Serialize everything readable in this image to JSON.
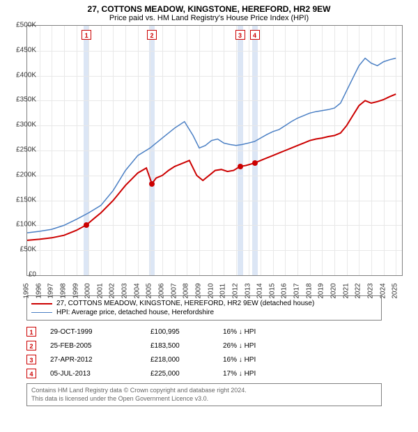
{
  "title": "27, COTTONS MEADOW, KINGSTONE, HEREFORD, HR2 9EW",
  "subtitle": "Price paid vs. HM Land Registry's House Price Index (HPI)",
  "chart": {
    "type": "line",
    "x_range": [
      1995,
      2025.5
    ],
    "y_range": [
      0,
      500000
    ],
    "y_tick_step": 50000,
    "y_ticks": [
      "£0",
      "£50K",
      "£100K",
      "£150K",
      "£200K",
      "£250K",
      "£300K",
      "£350K",
      "£400K",
      "£450K",
      "£500K"
    ],
    "x_ticks": [
      1995,
      1996,
      1997,
      1998,
      1999,
      2000,
      2001,
      2002,
      2003,
      2004,
      2005,
      2006,
      2007,
      2008,
      2009,
      2010,
      2011,
      2012,
      2013,
      2014,
      2015,
      2016,
      2017,
      2018,
      2019,
      2020,
      2021,
      2022,
      2023,
      2024,
      2025
    ],
    "grid_color": "#e8e8e8",
    "border_color": "#808080",
    "band_color": "#dce6f5",
    "background_color": "#ffffff",
    "series": [
      {
        "name": "property",
        "color": "#cc0000",
        "width": 2,
        "points": [
          [
            1995.0,
            70000
          ],
          [
            1996.0,
            72000
          ],
          [
            1997.0,
            75000
          ],
          [
            1998.0,
            80000
          ],
          [
            1999.0,
            90000
          ],
          [
            1999.83,
            100995
          ],
          [
            2000.5,
            115000
          ],
          [
            2001.0,
            125000
          ],
          [
            2002.0,
            150000
          ],
          [
            2003.0,
            180000
          ],
          [
            2004.0,
            205000
          ],
          [
            2004.7,
            215000
          ],
          [
            2005.15,
            183500
          ],
          [
            2005.5,
            195000
          ],
          [
            2006.0,
            200000
          ],
          [
            2006.5,
            210000
          ],
          [
            2007.0,
            218000
          ],
          [
            2007.7,
            225000
          ],
          [
            2008.2,
            230000
          ],
          [
            2008.8,
            200000
          ],
          [
            2009.3,
            190000
          ],
          [
            2009.8,
            200000
          ],
          [
            2010.3,
            210000
          ],
          [
            2010.8,
            212000
          ],
          [
            2011.3,
            208000
          ],
          [
            2011.8,
            210000
          ],
          [
            2012.32,
            218000
          ],
          [
            2012.8,
            220000
          ],
          [
            2013.51,
            225000
          ],
          [
            2014.0,
            230000
          ],
          [
            2014.5,
            235000
          ],
          [
            2015.0,
            240000
          ],
          [
            2015.5,
            245000
          ],
          [
            2016.0,
            250000
          ],
          [
            2016.5,
            255000
          ],
          [
            2017.0,
            260000
          ],
          [
            2017.5,
            265000
          ],
          [
            2018.0,
            270000
          ],
          [
            2018.5,
            273000
          ],
          [
            2019.0,
            275000
          ],
          [
            2019.5,
            278000
          ],
          [
            2020.0,
            280000
          ],
          [
            2020.5,
            285000
          ],
          [
            2021.0,
            300000
          ],
          [
            2021.5,
            320000
          ],
          [
            2022.0,
            340000
          ],
          [
            2022.5,
            350000
          ],
          [
            2023.0,
            345000
          ],
          [
            2023.5,
            348000
          ],
          [
            2024.0,
            352000
          ],
          [
            2024.5,
            358000
          ],
          [
            2025.0,
            363000
          ]
        ]
      },
      {
        "name": "hpi",
        "color": "#4a7fc4",
        "width": 1.5,
        "points": [
          [
            1995.0,
            85000
          ],
          [
            1996.0,
            88000
          ],
          [
            1997.0,
            92000
          ],
          [
            1998.0,
            100000
          ],
          [
            1999.0,
            112000
          ],
          [
            2000.0,
            125000
          ],
          [
            2001.0,
            140000
          ],
          [
            2002.0,
            170000
          ],
          [
            2003.0,
            210000
          ],
          [
            2004.0,
            240000
          ],
          [
            2005.0,
            255000
          ],
          [
            2006.0,
            275000
          ],
          [
            2007.0,
            295000
          ],
          [
            2007.8,
            308000
          ],
          [
            2008.5,
            280000
          ],
          [
            2009.0,
            255000
          ],
          [
            2009.5,
            260000
          ],
          [
            2010.0,
            270000
          ],
          [
            2010.5,
            273000
          ],
          [
            2011.0,
            265000
          ],
          [
            2011.5,
            262000
          ],
          [
            2012.0,
            260000
          ],
          [
            2012.5,
            262000
          ],
          [
            2013.0,
            265000
          ],
          [
            2013.5,
            268000
          ],
          [
            2014.0,
            275000
          ],
          [
            2014.5,
            282000
          ],
          [
            2015.0,
            288000
          ],
          [
            2015.5,
            292000
          ],
          [
            2016.0,
            300000
          ],
          [
            2016.5,
            308000
          ],
          [
            2017.0,
            315000
          ],
          [
            2017.5,
            320000
          ],
          [
            2018.0,
            325000
          ],
          [
            2018.5,
            328000
          ],
          [
            2019.0,
            330000
          ],
          [
            2019.5,
            332000
          ],
          [
            2020.0,
            335000
          ],
          [
            2020.5,
            345000
          ],
          [
            2021.0,
            370000
          ],
          [
            2021.5,
            395000
          ],
          [
            2022.0,
            420000
          ],
          [
            2022.5,
            435000
          ],
          [
            2023.0,
            425000
          ],
          [
            2023.5,
            420000
          ],
          [
            2024.0,
            428000
          ],
          [
            2024.5,
            432000
          ],
          [
            2025.0,
            435000
          ]
        ]
      }
    ],
    "sales": [
      {
        "idx": "1",
        "x": 1999.83,
        "price": 100995,
        "date": "29-OCT-1999",
        "price_label": "£100,995",
        "pct_label": "16% ↓ HPI"
      },
      {
        "idx": "2",
        "x": 2005.15,
        "price": 183500,
        "date": "25-FEB-2005",
        "price_label": "£183,500",
        "pct_label": "26% ↓ HPI"
      },
      {
        "idx": "3",
        "x": 2012.32,
        "price": 218000,
        "date": "27-APR-2012",
        "price_label": "£218,000",
        "pct_label": "16% ↓ HPI"
      },
      {
        "idx": "4",
        "x": 2013.51,
        "price": 225000,
        "date": "05-JUL-2013",
        "price_label": "£225,000",
        "pct_label": "17% ↓ HPI"
      }
    ]
  },
  "legend": {
    "items": [
      {
        "color": "#cc0000",
        "width": 2,
        "label": "27, COTTONS MEADOW, KINGSTONE, HEREFORD, HR2 9EW (detached house)"
      },
      {
        "color": "#4a7fc4",
        "width": 1.5,
        "label": "HPI: Average price, detached house, Herefordshire"
      }
    ]
  },
  "footer": {
    "line1": "Contains HM Land Registry data © Crown copyright and database right 2024.",
    "line2": "This data is licensed under the Open Government Licence v3.0."
  }
}
